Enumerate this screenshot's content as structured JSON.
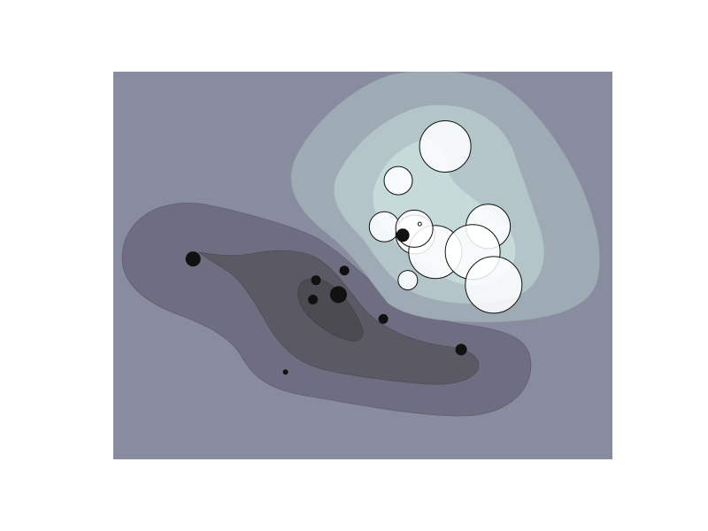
{
  "chart_data": {
    "type": "scatter",
    "title": "",
    "xlabel": "",
    "ylabel": "",
    "xlim": [
      0,
      1
    ],
    "ylim": [
      0,
      1
    ],
    "axes_visible": false,
    "grid": false,
    "background_levels": [
      {
        "name": "base",
        "color": "#898c9e"
      },
      {
        "name": "neg1",
        "color": "#6e6d81"
      },
      {
        "name": "neg2",
        "color": "#5a5964"
      },
      {
        "name": "neg3",
        "color": "#4c4b52"
      },
      {
        "name": "pos1",
        "color": "#9eaab4"
      },
      {
        "name": "pos2",
        "color": "#b4c5c9"
      },
      {
        "name": "pos3",
        "color": "#c6dad9"
      }
    ],
    "series": [
      {
        "color": "#ffffff",
        "edge": "#111111",
        "points": [
          {
            "x": 0.665,
            "y": 0.807,
            "size": 29
          },
          {
            "x": 0.571,
            "y": 0.719,
            "size": 16
          },
          {
            "x": 0.543,
            "y": 0.6,
            "size": 17
          },
          {
            "x": 0.605,
            "y": 0.58,
            "size": 22
          },
          {
            "x": 0.645,
            "y": 0.535,
            "size": 30
          },
          {
            "x": 0.603,
            "y": 0.595,
            "size": 21
          },
          {
            "x": 0.751,
            "y": 0.601,
            "size": 25
          },
          {
            "x": 0.72,
            "y": 0.535,
            "size": 31
          },
          {
            "x": 0.762,
            "y": 0.45,
            "size": 32
          },
          {
            "x": 0.59,
            "y": 0.462,
            "size": 11
          },
          {
            "x": 0.614,
            "y": 0.607,
            "size": 2
          }
        ]
      },
      {
        "color": "#111111",
        "edge": "#111111",
        "points": [
          {
            "x": 0.16,
            "y": 0.517,
            "size": 8
          },
          {
            "x": 0.463,
            "y": 0.487,
            "size": 5
          },
          {
            "x": 0.406,
            "y": 0.462,
            "size": 5
          },
          {
            "x": 0.451,
            "y": 0.425,
            "size": 9
          },
          {
            "x": 0.4,
            "y": 0.412,
            "size": 5
          },
          {
            "x": 0.541,
            "y": 0.362,
            "size": 5
          },
          {
            "x": 0.697,
            "y": 0.283,
            "size": 6
          },
          {
            "x": 0.345,
            "y": 0.225,
            "size": 2.5
          },
          {
            "x": 0.58,
            "y": 0.578,
            "size": 7
          }
        ]
      }
    ]
  }
}
